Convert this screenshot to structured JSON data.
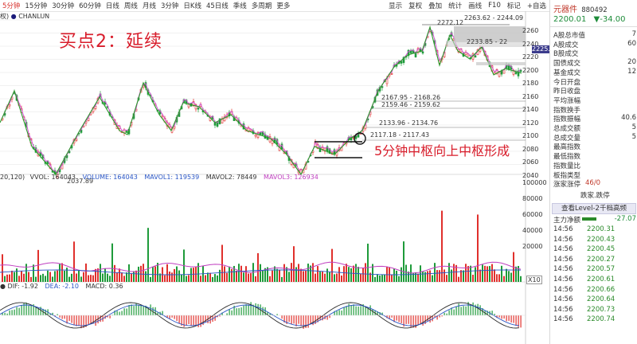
{
  "toolbar": {
    "timeframes": [
      "5分钟",
      "15分钟",
      "30分钟",
      "60分钟",
      "日线",
      "周线",
      "月线",
      "3分钟",
      "日K线",
      "45日线",
      "季线",
      "多周期",
      "更多"
    ],
    "active_timeframe": "5分钟",
    "indicator": "CHANLUN",
    "right_items": [
      "显示",
      "复权",
      "叠加",
      "统计",
      "画线",
      "F10",
      "标记",
      "+自选"
    ]
  },
  "overlay": {
    "buy_title": "买点2：延续",
    "center_note": "5分钟中枢向上中枢形成"
  },
  "price_chart": {
    "axis_ticks": [
      "2260",
      "2240",
      "2220",
      "2200",
      "2180",
      "2160",
      "2140",
      "2120",
      "2100",
      "2080",
      "2060",
      "2040"
    ],
    "current_tag": "2225.2",
    "annotations": {
      "low": "2037.89",
      "high": "2272.12",
      "z1": "2233.85 - 22",
      "z2": "2263.62 - 2244.09",
      "z3": "2167.95 - 2168.26",
      "z4": "2159.46 - 2159.62",
      "z5": "2133.96 - 2134.76",
      "z6": "2117.18 - 2117.43"
    }
  },
  "volume_panel": {
    "legend_prefix": "20,120)",
    "vvol_label": "VVOL: 164043",
    "volume_label": "VOLUME: 164043",
    "mavol1_label": "MAVOL1: 119539",
    "mavol2_label": "MAVOL2: 78449",
    "mavol3_label": "MAVOL3: 126934",
    "axis_ticks": [
      "100000",
      "80000",
      "60000",
      "40000",
      "20000"
    ],
    "x10_label": "X10"
  },
  "macd_panel": {
    "dif_label": "DIF: -1.92",
    "dea_label": "DEA: -2.10",
    "macd_label": "MACD: 0.36"
  },
  "quote_panel": {
    "name": "元器件",
    "code": "880492",
    "price": "2200.01",
    "change": "▼-34.00",
    "rows": [
      {
        "k": "A股总市值",
        "v": "7"
      },
      {
        "k": "A股成交",
        "v": "60"
      },
      {
        "k": "B股成交",
        "v": ""
      },
      {
        "k": "国债成交",
        "v": "20"
      },
      {
        "k": "基金成交",
        "v": "12"
      },
      {
        "k": "今日开盘",
        "v": ""
      },
      {
        "k": "昨日收盘",
        "v": ""
      },
      {
        "k": "平均涨幅",
        "v": ""
      },
      {
        "k": "指数换手",
        "v": ""
      },
      {
        "k": "指数振幅",
        "v": "40.6"
      },
      {
        "k": "总成交额",
        "v": "5"
      },
      {
        "k": "总成交量",
        "v": "5"
      },
      {
        "k": "最高指数",
        "v": ""
      },
      {
        "k": "最低指数",
        "v": ""
      },
      {
        "k": "指数量比",
        "v": ""
      },
      {
        "k": "板指类型",
        "v": ""
      },
      {
        "k": "涨家涨停",
        "v": "46/0"
      }
    ],
    "rise_fall_tail": "跌家.跌停",
    "level2_button": "查看Level-2千档高频",
    "main_flow_label": "主力净额",
    "main_flow_value": "-27.07",
    "ticks": [
      {
        "t": "14:56",
        "p": "2200.31"
      },
      {
        "t": "14:56",
        "p": "2200.43"
      },
      {
        "t": "14:56",
        "p": "2200.45"
      },
      {
        "t": "14:56",
        "p": "2200.27"
      },
      {
        "t": "14:56",
        "p": "2200.57"
      },
      {
        "t": "14:56",
        "p": "2200.61"
      },
      {
        "t": "14:56",
        "p": "2200.66"
      },
      {
        "t": "14:56",
        "p": "2200.64"
      },
      {
        "t": "14:56",
        "p": "2200.73"
      },
      {
        "t": "14:56",
        "p": "2200.74"
      }
    ]
  }
}
